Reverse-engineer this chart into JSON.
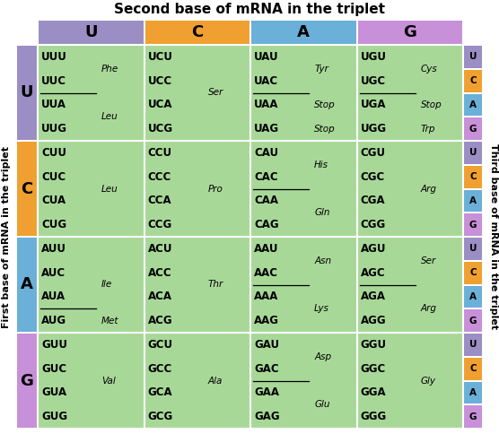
{
  "title": "Second base of mRNA in the triplet",
  "left_label": "First base of mRNA in the triplet",
  "right_label": "Third base of mRNA in the triplet",
  "col_headers": [
    "U",
    "C",
    "A",
    "G"
  ],
  "row_headers": [
    "U",
    "C",
    "A",
    "G"
  ],
  "third_bases": [
    "U",
    "C",
    "A",
    "G"
  ],
  "col_header_colors": [
    "#9b8ec4",
    "#f0a030",
    "#6ab0d8",
    "#c890d8"
  ],
  "row_header_colors": [
    "#9b8ec4",
    "#f0a030",
    "#6ab0d8",
    "#c890d8"
  ],
  "third_base_colors": [
    "#9b8ec4",
    "#f0a030",
    "#6ab0d8",
    "#c890d8"
  ],
  "cell_bg_green": "#a8d898",
  "cell_bg_white": "#f0f0f0",
  "fig_bg": "#ffffff",
  "cells": [
    {
      "row": 0,
      "col": 0,
      "codons": [
        "UUU",
        "UUC",
        "UUA",
        "UUG"
      ],
      "underline_after": [
        2
      ],
      "aa_items": [
        {
          "text": "Phe",
          "between": [
            1,
            2
          ]
        },
        {
          "text": "Leu",
          "between": [
            3,
            4
          ]
        }
      ]
    },
    {
      "row": 0,
      "col": 1,
      "codons": [
        "UCU",
        "UCC",
        "UCA",
        "UCG"
      ],
      "underline_after": [],
      "aa_items": [
        {
          "text": "Ser",
          "between": [
            2,
            3
          ]
        }
      ]
    },
    {
      "row": 0,
      "col": 2,
      "codons": [
        "UAU",
        "UAC",
        "UAA",
        "UAG"
      ],
      "underline_after": [
        2
      ],
      "aa_items": [
        {
          "text": "Tyr",
          "between": [
            1,
            2
          ]
        },
        {
          "text": "Stop",
          "between": [
            3,
            3
          ]
        },
        {
          "text": "Stop",
          "between": [
            4,
            4
          ]
        }
      ]
    },
    {
      "row": 0,
      "col": 3,
      "codons": [
        "UGU",
        "UGC",
        "UGA",
        "UGG"
      ],
      "underline_after": [
        2
      ],
      "aa_items": [
        {
          "text": "Cys",
          "between": [
            1,
            2
          ]
        },
        {
          "text": "Stop",
          "between": [
            3,
            3
          ]
        },
        {
          "text": "Trp",
          "between": [
            4,
            4
          ]
        }
      ]
    },
    {
      "row": 1,
      "col": 0,
      "codons": [
        "CUU",
        "CUC",
        "CUA",
        "CUG"
      ],
      "underline_after": [],
      "aa_items": [
        {
          "text": "Leu",
          "between": [
            2,
            3
          ]
        }
      ]
    },
    {
      "row": 1,
      "col": 1,
      "codons": [
        "CCU",
        "CCC",
        "CCA",
        "CCG"
      ],
      "underline_after": [],
      "aa_items": [
        {
          "text": "Pro",
          "between": [
            2,
            3
          ]
        }
      ]
    },
    {
      "row": 1,
      "col": 2,
      "codons": [
        "CAU",
        "CAC",
        "CAA",
        "CAG"
      ],
      "underline_after": [
        2
      ],
      "aa_items": [
        {
          "text": "His",
          "between": [
            1,
            2
          ]
        },
        {
          "text": "Gln",
          "between": [
            3,
            4
          ]
        }
      ]
    },
    {
      "row": 1,
      "col": 3,
      "codons": [
        "CGU",
        "CGC",
        "CGA",
        "CGG"
      ],
      "underline_after": [],
      "aa_items": [
        {
          "text": "Arg",
          "between": [
            2,
            3
          ]
        }
      ]
    },
    {
      "row": 2,
      "col": 0,
      "codons": [
        "AUU",
        "AUC",
        "AUA",
        "AUG"
      ],
      "underline_after": [
        3
      ],
      "aa_items": [
        {
          "text": "Ile",
          "between": [
            2,
            3
          ]
        },
        {
          "text": "Met",
          "between": [
            4,
            4
          ]
        }
      ]
    },
    {
      "row": 2,
      "col": 1,
      "codons": [
        "ACU",
        "ACC",
        "ACA",
        "ACG"
      ],
      "underline_after": [],
      "aa_items": [
        {
          "text": "Thr",
          "between": [
            2,
            3
          ]
        }
      ]
    },
    {
      "row": 2,
      "col": 2,
      "codons": [
        "AAU",
        "AAC",
        "AAA",
        "AAG"
      ],
      "underline_after": [
        2
      ],
      "aa_items": [
        {
          "text": "Asn",
          "between": [
            1,
            2
          ]
        },
        {
          "text": "Lys",
          "between": [
            3,
            4
          ]
        }
      ]
    },
    {
      "row": 2,
      "col": 3,
      "codons": [
        "AGU",
        "AGC",
        "AGA",
        "AGG"
      ],
      "underline_after": [
        2
      ],
      "aa_items": [
        {
          "text": "Ser",
          "between": [
            1,
            2
          ]
        },
        {
          "text": "Arg",
          "between": [
            3,
            4
          ]
        }
      ]
    },
    {
      "row": 3,
      "col": 0,
      "codons": [
        "GUU",
        "GUC",
        "GUA",
        "GUG"
      ],
      "underline_after": [],
      "aa_items": [
        {
          "text": "Val",
          "between": [
            2,
            3
          ]
        }
      ]
    },
    {
      "row": 3,
      "col": 1,
      "codons": [
        "GCU",
        "GCC",
        "GCA",
        "GCG"
      ],
      "underline_after": [],
      "aa_items": [
        {
          "text": "Ala",
          "between": [
            2,
            3
          ]
        }
      ]
    },
    {
      "row": 3,
      "col": 2,
      "codons": [
        "GAU",
        "GAC",
        "GAA",
        "GAG"
      ],
      "underline_after": [
        2
      ],
      "aa_items": [
        {
          "text": "Asp",
          "between": [
            1,
            2
          ]
        },
        {
          "text": "Glu",
          "between": [
            3,
            4
          ]
        }
      ]
    },
    {
      "row": 3,
      "col": 3,
      "codons": [
        "GGU",
        "GGC",
        "GGA",
        "GGG"
      ],
      "underline_after": [],
      "aa_items": [
        {
          "text": "Gly",
          "between": [
            2,
            3
          ]
        }
      ]
    }
  ]
}
